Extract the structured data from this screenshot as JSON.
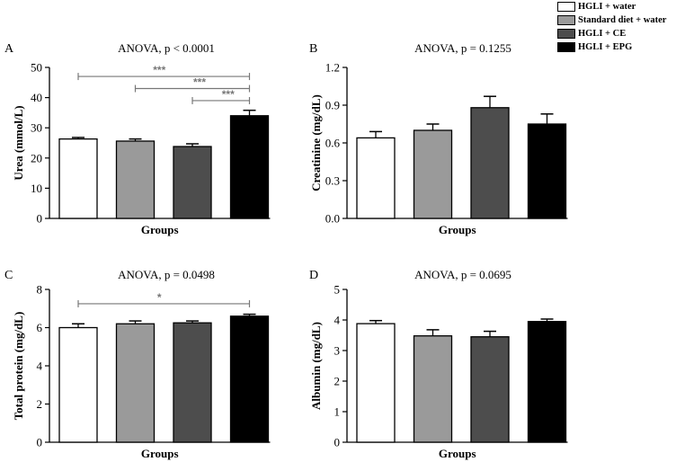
{
  "legend": [
    {
      "label": "HGLI + water",
      "color": "#ffffff"
    },
    {
      "label": "Standard diet + water",
      "color": "#9a9a9a"
    },
    {
      "label": "HGLI + CE",
      "color": "#4d4d4d"
    },
    {
      "label": "HGLI + EPG",
      "color": "#000000"
    }
  ],
  "chart_data": [
    {
      "type": "bar",
      "panel": "A",
      "title": "ANOVA, p < 0.0001",
      "xlabel": "Groups",
      "ylabel": "Urea (mmol/L)",
      "categories": [
        "HGLI + water",
        "Standard diet + water",
        "HGLI + CE",
        "HGLI + EPG"
      ],
      "values": [
        26.3,
        25.6,
        23.8,
        34.0
      ],
      "errors": [
        0.5,
        0.7,
        0.9,
        1.8
      ],
      "ylim": [
        0,
        50
      ],
      "ticks": [
        "0",
        "10",
        "20",
        "30",
        "40",
        "50"
      ],
      "significance": [
        {
          "from": 0,
          "to": 3,
          "label": "***",
          "y": 47
        },
        {
          "from": 1,
          "to": 3,
          "label": "***",
          "y": 43
        },
        {
          "from": 2,
          "to": 3,
          "label": "***",
          "y": 39
        }
      ]
    },
    {
      "type": "bar",
      "panel": "B",
      "title": "ANOVA, p = 0.1255",
      "xlabel": "Groups",
      "ylabel": "Creatinine (mg/dL)",
      "categories": [
        "HGLI + water",
        "Standard diet + water",
        "HGLI + CE",
        "HGLI + EPG"
      ],
      "values": [
        0.64,
        0.7,
        0.88,
        0.75
      ],
      "errors": [
        0.05,
        0.05,
        0.09,
        0.08
      ],
      "ylim": [
        0,
        1.2
      ],
      "ticks": [
        "0.0",
        "0.3",
        "0.6",
        "0.9",
        "1.2"
      ],
      "significance": []
    },
    {
      "type": "bar",
      "panel": "C",
      "title": "ANOVA, p = 0.0498",
      "xlabel": "Groups",
      "ylabel": "Total protein (mg/dL)",
      "categories": [
        "HGLI + water",
        "Standard diet + water",
        "HGLI + CE",
        "HGLI + EPG"
      ],
      "values": [
        6.0,
        6.2,
        6.25,
        6.6
      ],
      "errors": [
        0.2,
        0.15,
        0.1,
        0.1
      ],
      "ylim": [
        0,
        8
      ],
      "ticks": [
        "0",
        "2",
        "4",
        "6",
        "8"
      ],
      "significance": [
        {
          "from": 0,
          "to": 3,
          "label": "*",
          "y": 7.25
        }
      ]
    },
    {
      "type": "bar",
      "panel": "D",
      "title": "ANOVA, p = 0.0695",
      "xlabel": "Groups",
      "ylabel": "Albumin (mg/dL)",
      "categories": [
        "HGLI + water",
        "Standard diet + water",
        "HGLI + CE",
        "HGLI + EPG"
      ],
      "values": [
        3.88,
        3.48,
        3.45,
        3.95
      ],
      "errors": [
        0.1,
        0.2,
        0.18,
        0.08
      ],
      "ylim": [
        0,
        5
      ],
      "ticks": [
        "0",
        "1",
        "2",
        "3",
        "4",
        "5"
      ],
      "significance": []
    }
  ]
}
